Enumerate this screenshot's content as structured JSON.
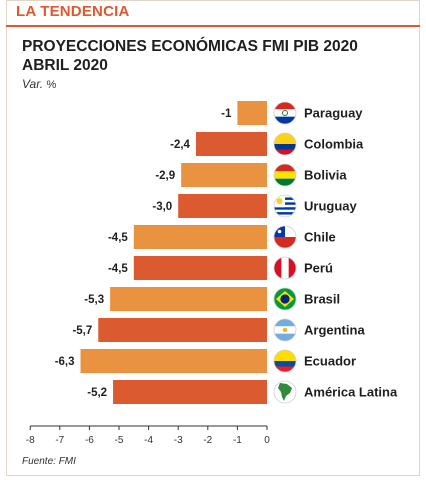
{
  "header": {
    "title": "LA TENDENCIA"
  },
  "subtitle": {
    "text": "Var.",
    "unit": "%"
  },
  "source": "Fuente: FMI",
  "colors": {
    "accent": "#e0582f",
    "bar_light": "#e9923f",
    "bar_dark": "#dc5a2f",
    "axis": "#333333"
  },
  "chart_data": {
    "type": "bar",
    "orientation": "horizontal",
    "title": "PROYECCIONES ECONÓMICAS FMI PIB 2020 ABRIL 2020",
    "title_lines": [
      "PROYECCIONES ECONÓMICAS FMI PIB 2020",
      "ABRIL 2020"
    ],
    "categories": [
      "Paraguay",
      "Colombia",
      "Bolivia",
      "Uruguay",
      "Chile",
      "Perú",
      "Brasil",
      "Argentina",
      "Ecuador",
      "América Latina"
    ],
    "values": [
      -1,
      -2.4,
      -2.9,
      -3.0,
      -4.5,
      -4.5,
      -5.3,
      -5.7,
      -6.3,
      -5.2
    ],
    "value_labels": [
      "-1",
      "-2,4",
      "-2,9",
      "-3,0",
      "-4,5",
      "-4,5",
      "-5,3",
      "-5,7",
      "-6,3",
      "-5,2"
    ],
    "bar_colors": [
      "#e9923f",
      "#dc5a2f",
      "#e9923f",
      "#dc5a2f",
      "#e9923f",
      "#dc5a2f",
      "#e9923f",
      "#dc5a2f",
      "#e9923f",
      "#dc5a2f"
    ],
    "flag_icons": [
      "paraguay-flag-icon",
      "colombia-flag-icon",
      "bolivia-flag-icon",
      "uruguay-flag-icon",
      "chile-flag-icon",
      "peru-flag-icon",
      "brasil-flag-icon",
      "argentina-flag-icon",
      "ecuador-flag-icon",
      "latin-america-globe-icon"
    ],
    "xlim": [
      -8,
      0
    ],
    "xticks": [
      -8,
      -7,
      -6,
      -5,
      -4,
      -3,
      -2,
      -1,
      0
    ],
    "xlabel": "",
    "ylabel": "",
    "grid": false,
    "legend": "none"
  }
}
